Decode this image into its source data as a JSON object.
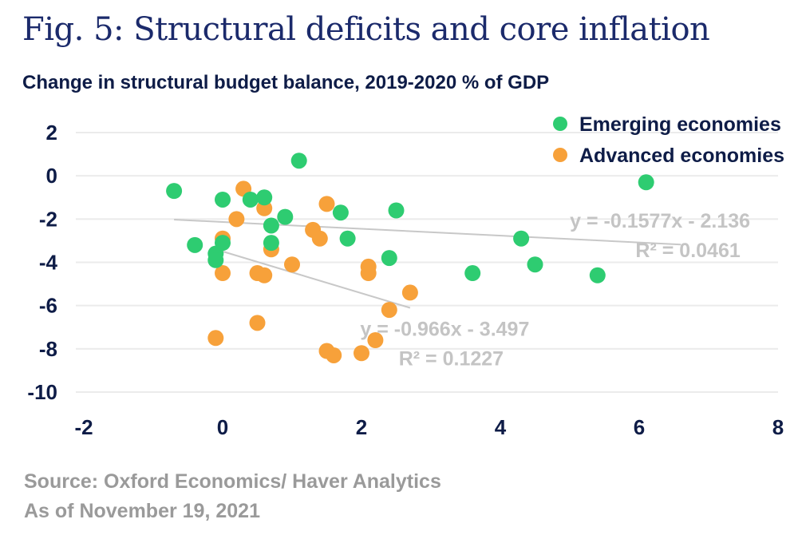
{
  "title": "Fig. 5: Structural deficits and core inflation",
  "subtitle": "Change in structural budget balance, 2019-2020 % of GDP",
  "footer": {
    "source": "Source: Oxford Economics/ Haver Analytics",
    "date": "As of November 19, 2021"
  },
  "colors": {
    "emerging": "#2ecc71",
    "advanced": "#f7a13a",
    "axis_text": "#0e1c47",
    "grid": "#ebebeb",
    "trend": "#c8c8c8",
    "annotation": "#c4c4c4"
  },
  "chart_data": {
    "type": "scatter",
    "title": "Fig. 5: Structural deficits and core inflation",
    "ylabel": "Change in structural budget balance, 2019-2020 % of GDP",
    "xlabel": "",
    "xlim": [
      -2,
      8
    ],
    "ylim": [
      -10,
      2
    ],
    "xticks": [
      -2,
      0,
      2,
      4,
      6,
      8
    ],
    "yticks": [
      2,
      0,
      -2,
      -4,
      -6,
      -8,
      -10
    ],
    "grid": "horizontal",
    "legend_position": "top-right",
    "series": [
      {
        "name": "Emerging economies",
        "color": "#2ecc71",
        "points": [
          {
            "x": -0.7,
            "y": -0.7
          },
          {
            "x": -0.4,
            "y": -3.2
          },
          {
            "x": -0.1,
            "y": -3.6
          },
          {
            "x": -0.1,
            "y": -3.9
          },
          {
            "x": 0.0,
            "y": -1.1
          },
          {
            "x": 0.0,
            "y": -3.1
          },
          {
            "x": 0.4,
            "y": -1.1
          },
          {
            "x": 0.6,
            "y": -1.0
          },
          {
            "x": 0.7,
            "y": -2.3
          },
          {
            "x": 0.7,
            "y": -3.1
          },
          {
            "x": 0.9,
            "y": -1.9
          },
          {
            "x": 1.1,
            "y": 0.7
          },
          {
            "x": 1.7,
            "y": -1.7
          },
          {
            "x": 1.8,
            "y": -2.9
          },
          {
            "x": 2.4,
            "y": -3.8
          },
          {
            "x": 2.5,
            "y": -1.6
          },
          {
            "x": 3.6,
            "y": -4.5
          },
          {
            "x": 4.3,
            "y": -2.9
          },
          {
            "x": 4.5,
            "y": -4.1
          },
          {
            "x": 5.4,
            "y": -4.6
          },
          {
            "x": 6.1,
            "y": -0.3
          }
        ],
        "trendline": {
          "slope": -0.1577,
          "intercept": -2.136,
          "x_range": [
            -0.7,
            6.6
          ]
        }
      },
      {
        "name": "Advanced economies",
        "color": "#f7a13a",
        "points": [
          {
            "x": -0.1,
            "y": -7.5
          },
          {
            "x": 0.0,
            "y": -2.9
          },
          {
            "x": 0.0,
            "y": -4.5
          },
          {
            "x": 0.2,
            "y": -2.0
          },
          {
            "x": 0.3,
            "y": -0.6
          },
          {
            "x": 0.5,
            "y": -4.5
          },
          {
            "x": 0.5,
            "y": -6.8
          },
          {
            "x": 0.6,
            "y": -1.5
          },
          {
            "x": 0.6,
            "y": -4.6
          },
          {
            "x": 0.7,
            "y": -3.4
          },
          {
            "x": 1.0,
            "y": -4.1
          },
          {
            "x": 1.3,
            "y": -2.5
          },
          {
            "x": 1.4,
            "y": -2.9
          },
          {
            "x": 1.5,
            "y": -1.3
          },
          {
            "x": 1.5,
            "y": -8.1
          },
          {
            "x": 1.6,
            "y": -8.3
          },
          {
            "x": 2.0,
            "y": -8.2
          },
          {
            "x": 2.1,
            "y": -4.2
          },
          {
            "x": 2.1,
            "y": -4.5
          },
          {
            "x": 2.2,
            "y": -7.6
          },
          {
            "x": 2.4,
            "y": -6.2
          },
          {
            "x": 2.7,
            "y": -5.4
          }
        ],
        "trendline": {
          "slope": -0.966,
          "intercept": -3.497,
          "x_range": [
            -0.1,
            2.7
          ]
        }
      }
    ],
    "annotations": [
      {
        "equation": "y = -0.1577x - 2.136",
        "r2": "R² = 0.0461",
        "x": 6.3,
        "y": -2.4
      },
      {
        "equation": "y = -0.966x - 3.497",
        "r2": "R² = 0.1227",
        "x": 3.2,
        "y": -7.4
      }
    ]
  }
}
